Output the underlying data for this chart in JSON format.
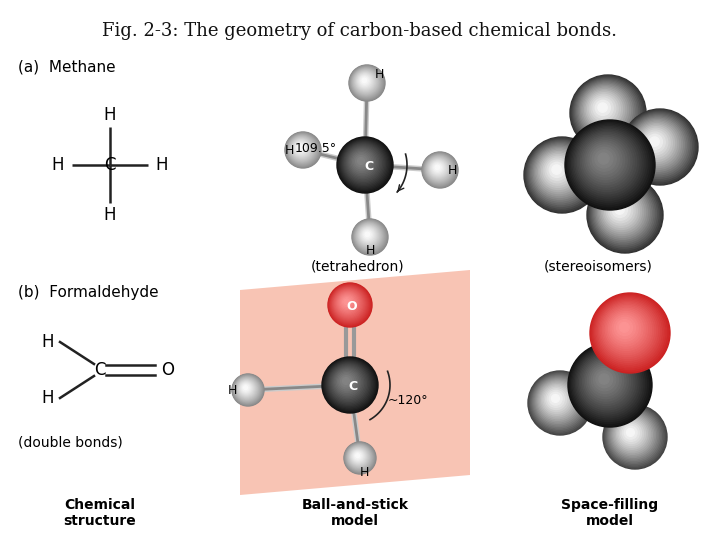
{
  "title": "Fig. 2-3: The geometry of carbon-based chemical bonds.",
  "title_fontsize": 13,
  "bg_color": "#ffffff",
  "label_a": "(a)  Methane",
  "label_b": "(b)  Formaldehyde",
  "label_tetrahedron": "(tetrahedron)",
  "label_stereoisomers": "(stereoisomers)",
  "label_double_bonds": "(double bonds)",
  "label_chem_structure": "Chemical\nstructure",
  "label_ball_stick": "Ball-and-stick\nmodel",
  "label_space_filling": "Space-filling\nmodel",
  "font_size_labels": 11,
  "font_size_small": 10,
  "panel_bg_color": "#f8c4b4",
  "angle_methane": "109.5°",
  "angle_formaldehyde": "~120°"
}
